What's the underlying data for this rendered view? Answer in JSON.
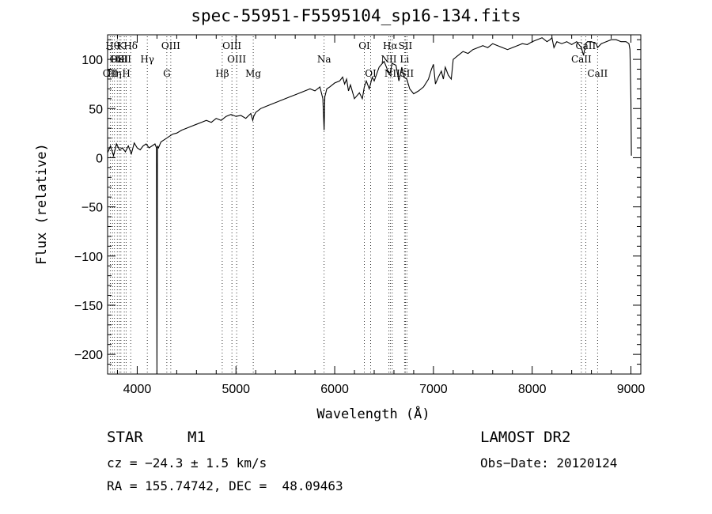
{
  "chart_data": {
    "type": "line",
    "title": "spec-55951-F5595104_sp16-134.fits",
    "xlabel": "Wavelength (Å)",
    "ylabel": "Flux (relative)",
    "xlim": [
      3700,
      9100
    ],
    "ylim": [
      -220,
      125
    ],
    "x_ticks": [
      4000,
      5000,
      6000,
      7000,
      8000,
      9000
    ],
    "y_ticks": [
      -200,
      -150,
      -100,
      -50,
      0,
      50,
      100
    ],
    "grid": false,
    "series": [
      {
        "x": [
          3700,
          3730,
          3760,
          3790,
          3820,
          3850,
          3880,
          3910,
          3940,
          3970,
          4000,
          4030,
          4060,
          4090,
          4120,
          4150,
          4180,
          4195,
          4200,
          4205,
          4215,
          4240,
          4270,
          4300,
          4330,
          4360,
          4400,
          4450,
          4500,
          4550,
          4600,
          4650,
          4700,
          4750,
          4800,
          4850,
          4900,
          4950,
          5000,
          5050,
          5100,
          5150,
          5170,
          5180,
          5200,
          5250,
          5300,
          5350,
          5400,
          5450,
          5500,
          5550,
          5600,
          5650,
          5700,
          5750,
          5800,
          5850,
          5880,
          5893,
          5900,
          5920,
          5950,
          6000,
          6050,
          6080,
          6100,
          6120,
          6140,
          6160,
          6200,
          6250,
          6280,
          6300,
          6320,
          6350,
          6380,
          6400,
          6450,
          6500,
          6540,
          6563,
          6580,
          6620,
          6650,
          6680,
          6700,
          6730,
          6760,
          6800,
          6850,
          6900,
          6950,
          6980,
          7000,
          7020,
          7050,
          7080,
          7100,
          7120,
          7150,
          7180,
          7200,
          7250,
          7300,
          7350,
          7400,
          7450,
          7500,
          7550,
          7600,
          7650,
          7700,
          7750,
          7800,
          7850,
          7900,
          7950,
          8000,
          8050,
          8100,
          8150,
          8180,
          8200,
          8220,
          8250,
          8300,
          8350,
          8400,
          8450,
          8498,
          8520,
          8542,
          8560,
          8600,
          8650,
          8662,
          8700,
          8750,
          8800,
          8850,
          8900,
          8950,
          8980,
          8990,
          9000,
          9005
        ],
        "y": [
          5,
          12,
          2,
          14,
          8,
          10,
          6,
          12,
          4,
          15,
          10,
          8,
          12,
          14,
          10,
          12,
          14,
          10,
          -222,
          12,
          10,
          16,
          18,
          20,
          22,
          24,
          25,
          28,
          30,
          32,
          34,
          36,
          38,
          36,
          40,
          38,
          42,
          44,
          42,
          43,
          40,
          45,
          38,
          42,
          46,
          50,
          52,
          54,
          56,
          58,
          60,
          62,
          64,
          66,
          68,
          70,
          68,
          72,
          60,
          28,
          62,
          70,
          72,
          76,
          78,
          82,
          75,
          80,
          68,
          74,
          60,
          66,
          60,
          72,
          78,
          70,
          82,
          78,
          92,
          98,
          88,
          86,
          96,
          94,
          78,
          92,
          82,
          80,
          70,
          65,
          68,
          72,
          80,
          90,
          95,
          75,
          82,
          88,
          80,
          92,
          84,
          80,
          100,
          104,
          108,
          106,
          110,
          112,
          114,
          112,
          116,
          114,
          112,
          110,
          112,
          114,
          116,
          115,
          118,
          120,
          122,
          118,
          120,
          122,
          112,
          118,
          116,
          118,
          115,
          118,
          112,
          104,
          116,
          118,
          118,
          116,
          112,
          116,
          118,
          120,
          120,
          118,
          118,
          116,
          110,
          60,
          2
        ]
      }
    ],
    "lines": [
      {
        "x": 3727,
        "label": "OII",
        "row": 2
      },
      {
        "x": 3750,
        "label": "Hθ",
        "row": 0
      },
      {
        "x": 3770,
        "label": "Hη",
        "row": 2
      },
      {
        "x": 3798,
        "label": "OII",
        "row": 1
      },
      {
        "x": 3820,
        "label": "HeI",
        "row": 1
      },
      {
        "x": 3835,
        "label": "K",
        "row": 0
      },
      {
        "x": 3869,
        "label": "SII",
        "row": 1
      },
      {
        "x": 3889,
        "label": "H",
        "row": 2
      },
      {
        "x": 3934,
        "label": "Hδ",
        "row": 0
      },
      {
        "x": 4102,
        "label": "Hγ",
        "row": 1
      },
      {
        "x": 4300,
        "label": "G",
        "row": 2
      },
      {
        "x": 4340,
        "label": "OIII",
        "row": 0
      },
      {
        "x": 4861,
        "label": "Hβ",
        "row": 2
      },
      {
        "x": 4959,
        "label": "OIII",
        "row": 0
      },
      {
        "x": 5007,
        "label": "OIII",
        "row": 1
      },
      {
        "x": 5175,
        "label": "Mg",
        "row": 2
      },
      {
        "x": 5893,
        "label": "Na",
        "row": 1
      },
      {
        "x": 6300,
        "label": "OI",
        "row": 0
      },
      {
        "x": 6364,
        "label": "OI",
        "row": 2
      },
      {
        "x": 6548,
        "label": "NII",
        "row": 1
      },
      {
        "x": 6563,
        "label": "Hα",
        "row": 0
      },
      {
        "x": 6583,
        "label": "NII",
        "row": 2
      },
      {
        "x": 6707,
        "label": "Li",
        "row": 1
      },
      {
        "x": 6716,
        "label": "SII",
        "row": 0
      },
      {
        "x": 6731,
        "label": "SII",
        "row": 2
      },
      {
        "x": 8498,
        "label": "CaII",
        "row": 1
      },
      {
        "x": 8542,
        "label": "CaII",
        "row": 0
      },
      {
        "x": 8662,
        "label": "CaII",
        "row": 2
      }
    ]
  },
  "info": {
    "class_label": "STAR",
    "subclass": "M1",
    "survey": "LAMOST DR2",
    "cz": "cz = −24.3 ± 1.5 km/s",
    "obs_date": "Obs−Date: 20120124",
    "coords": "RA = 155.74742, DEC =  48.09463"
  }
}
